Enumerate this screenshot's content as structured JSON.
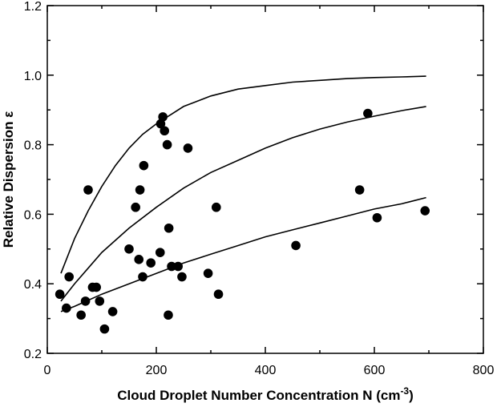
{
  "chart_data": {
    "type": "scatter",
    "title": "",
    "xlabel": "Cloud Droplet Number Concentration N (cm",
    "xlabel_sup": "-3",
    "xlabel_close": ")",
    "ylabel": "Relative Dispersion ε",
    "xlim": [
      0,
      800
    ],
    "ylim": [
      0.2,
      1.2
    ],
    "xticks": [
      0,
      200,
      400,
      600,
      800
    ],
    "xtick_labels": [
      "0",
      "200",
      "400",
      "600",
      "800"
    ],
    "yticks": [
      0.2,
      0.4,
      0.6,
      0.8,
      1.0,
      1.2
    ],
    "ytick_labels": [
      "0.2",
      "0.4",
      "0.6",
      "0.8",
      "1.0",
      "1.2"
    ],
    "grid": false,
    "points": [
      {
        "x": 23,
        "y": 0.37
      },
      {
        "x": 35,
        "y": 0.33
      },
      {
        "x": 40,
        "y": 0.42
      },
      {
        "x": 62,
        "y": 0.31
      },
      {
        "x": 70,
        "y": 0.35
      },
      {
        "x": 75,
        "y": 0.67
      },
      {
        "x": 83,
        "y": 0.39
      },
      {
        "x": 90,
        "y": 0.39
      },
      {
        "x": 96,
        "y": 0.35
      },
      {
        "x": 105,
        "y": 0.27
      },
      {
        "x": 120,
        "y": 0.32
      },
      {
        "x": 150,
        "y": 0.5
      },
      {
        "x": 162,
        "y": 0.62
      },
      {
        "x": 168,
        "y": 0.47
      },
      {
        "x": 170,
        "y": 0.67
      },
      {
        "x": 175,
        "y": 0.42
      },
      {
        "x": 177,
        "y": 0.74
      },
      {
        "x": 190,
        "y": 0.46
      },
      {
        "x": 207,
        "y": 0.49
      },
      {
        "x": 208,
        "y": 0.86
      },
      {
        "x": 212,
        "y": 0.88
      },
      {
        "x": 215,
        "y": 0.84
      },
      {
        "x": 220,
        "y": 0.8
      },
      {
        "x": 222,
        "y": 0.31
      },
      {
        "x": 223,
        "y": 0.56
      },
      {
        "x": 228,
        "y": 0.45
      },
      {
        "x": 240,
        "y": 0.45
      },
      {
        "x": 247,
        "y": 0.42
      },
      {
        "x": 258,
        "y": 0.79
      },
      {
        "x": 295,
        "y": 0.43
      },
      {
        "x": 310,
        "y": 0.62
      },
      {
        "x": 314,
        "y": 0.37
      },
      {
        "x": 456,
        "y": 0.51
      },
      {
        "x": 573,
        "y": 0.67
      },
      {
        "x": 588,
        "y": 0.89
      },
      {
        "x": 605,
        "y": 0.59
      },
      {
        "x": 693,
        "y": 0.61
      }
    ],
    "curves": [
      {
        "x": [
          25,
          50,
          75,
          100,
          125,
          150,
          175,
          200,
          250,
          300,
          350,
          400,
          450,
          500,
          550,
          600,
          650,
          695
        ],
        "y": [
          0.43,
          0.53,
          0.61,
          0.68,
          0.74,
          0.79,
          0.83,
          0.86,
          0.91,
          0.94,
          0.96,
          0.97,
          0.98,
          0.985,
          0.99,
          0.993,
          0.995,
          0.997
        ]
      },
      {
        "x": [
          25,
          50,
          75,
          100,
          150,
          200,
          250,
          300,
          350,
          400,
          450,
          500,
          550,
          600,
          650,
          695
        ],
        "y": [
          0.35,
          0.4,
          0.445,
          0.49,
          0.56,
          0.62,
          0.675,
          0.72,
          0.755,
          0.79,
          0.82,
          0.845,
          0.865,
          0.882,
          0.898,
          0.91
        ]
      },
      {
        "x": [
          25,
          50,
          100,
          150,
          200,
          250,
          300,
          350,
          400,
          450,
          500,
          550,
          600,
          650,
          695
        ],
        "y": [
          0.32,
          0.335,
          0.37,
          0.4,
          0.43,
          0.46,
          0.485,
          0.51,
          0.535,
          0.555,
          0.575,
          0.595,
          0.615,
          0.63,
          0.648
        ]
      }
    ]
  }
}
